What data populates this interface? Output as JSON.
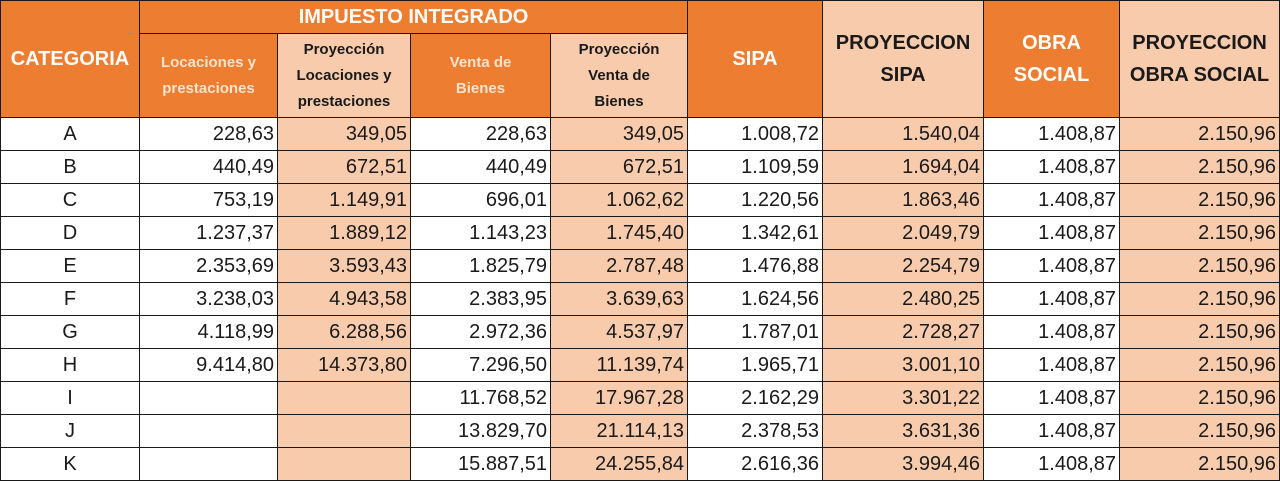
{
  "header": {
    "categoria": "CATEGORIA",
    "impuesto_integrado": "IMPUESTO INTEGRADO",
    "sub": [
      "Locaciones y prestaciones",
      "Proyección Locaciones y prestaciones",
      "Venta de Bienes",
      "Proyección Venta de Bienes"
    ],
    "sipa": "SIPA",
    "proyeccion_sipa": "PROYECCION SIPA",
    "obra_social": "OBRA SOCIAL",
    "proyeccion_obra_social": "PROYECCION OBRA SOCIAL"
  },
  "colors": {
    "dark": "#ed7d31",
    "light": "#f8cbad"
  },
  "rows": [
    [
      "A",
      "228,63",
      "349,05",
      "228,63",
      "349,05",
      "1.008,72",
      "1.540,04",
      "1.408,87",
      "2.150,96"
    ],
    [
      "B",
      "440,49",
      "672,51",
      "440,49",
      "672,51",
      "1.109,59",
      "1.694,04",
      "1.408,87",
      "2.150,96"
    ],
    [
      "C",
      "753,19",
      "1.149,91",
      "696,01",
      "1.062,62",
      "1.220,56",
      "1.863,46",
      "1.408,87",
      "2.150,96"
    ],
    [
      "D",
      "1.237,37",
      "1.889,12",
      "1.143,23",
      "1.745,40",
      "1.342,61",
      "2.049,79",
      "1.408,87",
      "2.150,96"
    ],
    [
      "E",
      "2.353,69",
      "3.593,43",
      "1.825,79",
      "2.787,48",
      "1.476,88",
      "2.254,79",
      "1.408,87",
      "2.150,96"
    ],
    [
      "F",
      "3.238,03",
      "4.943,58",
      "2.383,95",
      "3.639,63",
      "1.624,56",
      "2.480,25",
      "1.408,87",
      "2.150,96"
    ],
    [
      "G",
      "4.118,99",
      "6.288,56",
      "2.972,36",
      "4.537,97",
      "1.787,01",
      "2.728,27",
      "1.408,87",
      "2.150,96"
    ],
    [
      "H",
      "9.414,80",
      "14.373,80",
      "7.296,50",
      "11.139,74",
      "1.965,71",
      "3.001,10",
      "1.408,87",
      "2.150,96"
    ],
    [
      "I",
      "",
      "",
      "11.768,52",
      "17.967,28",
      "2.162,29",
      "3.301,22",
      "1.408,87",
      "2.150,96"
    ],
    [
      "J",
      "",
      "",
      "13.829,70",
      "21.114,13",
      "2.378,53",
      "3.631,36",
      "1.408,87",
      "2.150,96"
    ],
    [
      "K",
      "",
      "",
      "15.887,51",
      "24.255,84",
      "2.616,36",
      "3.994,46",
      "1.408,87",
      "2.150,96"
    ]
  ]
}
